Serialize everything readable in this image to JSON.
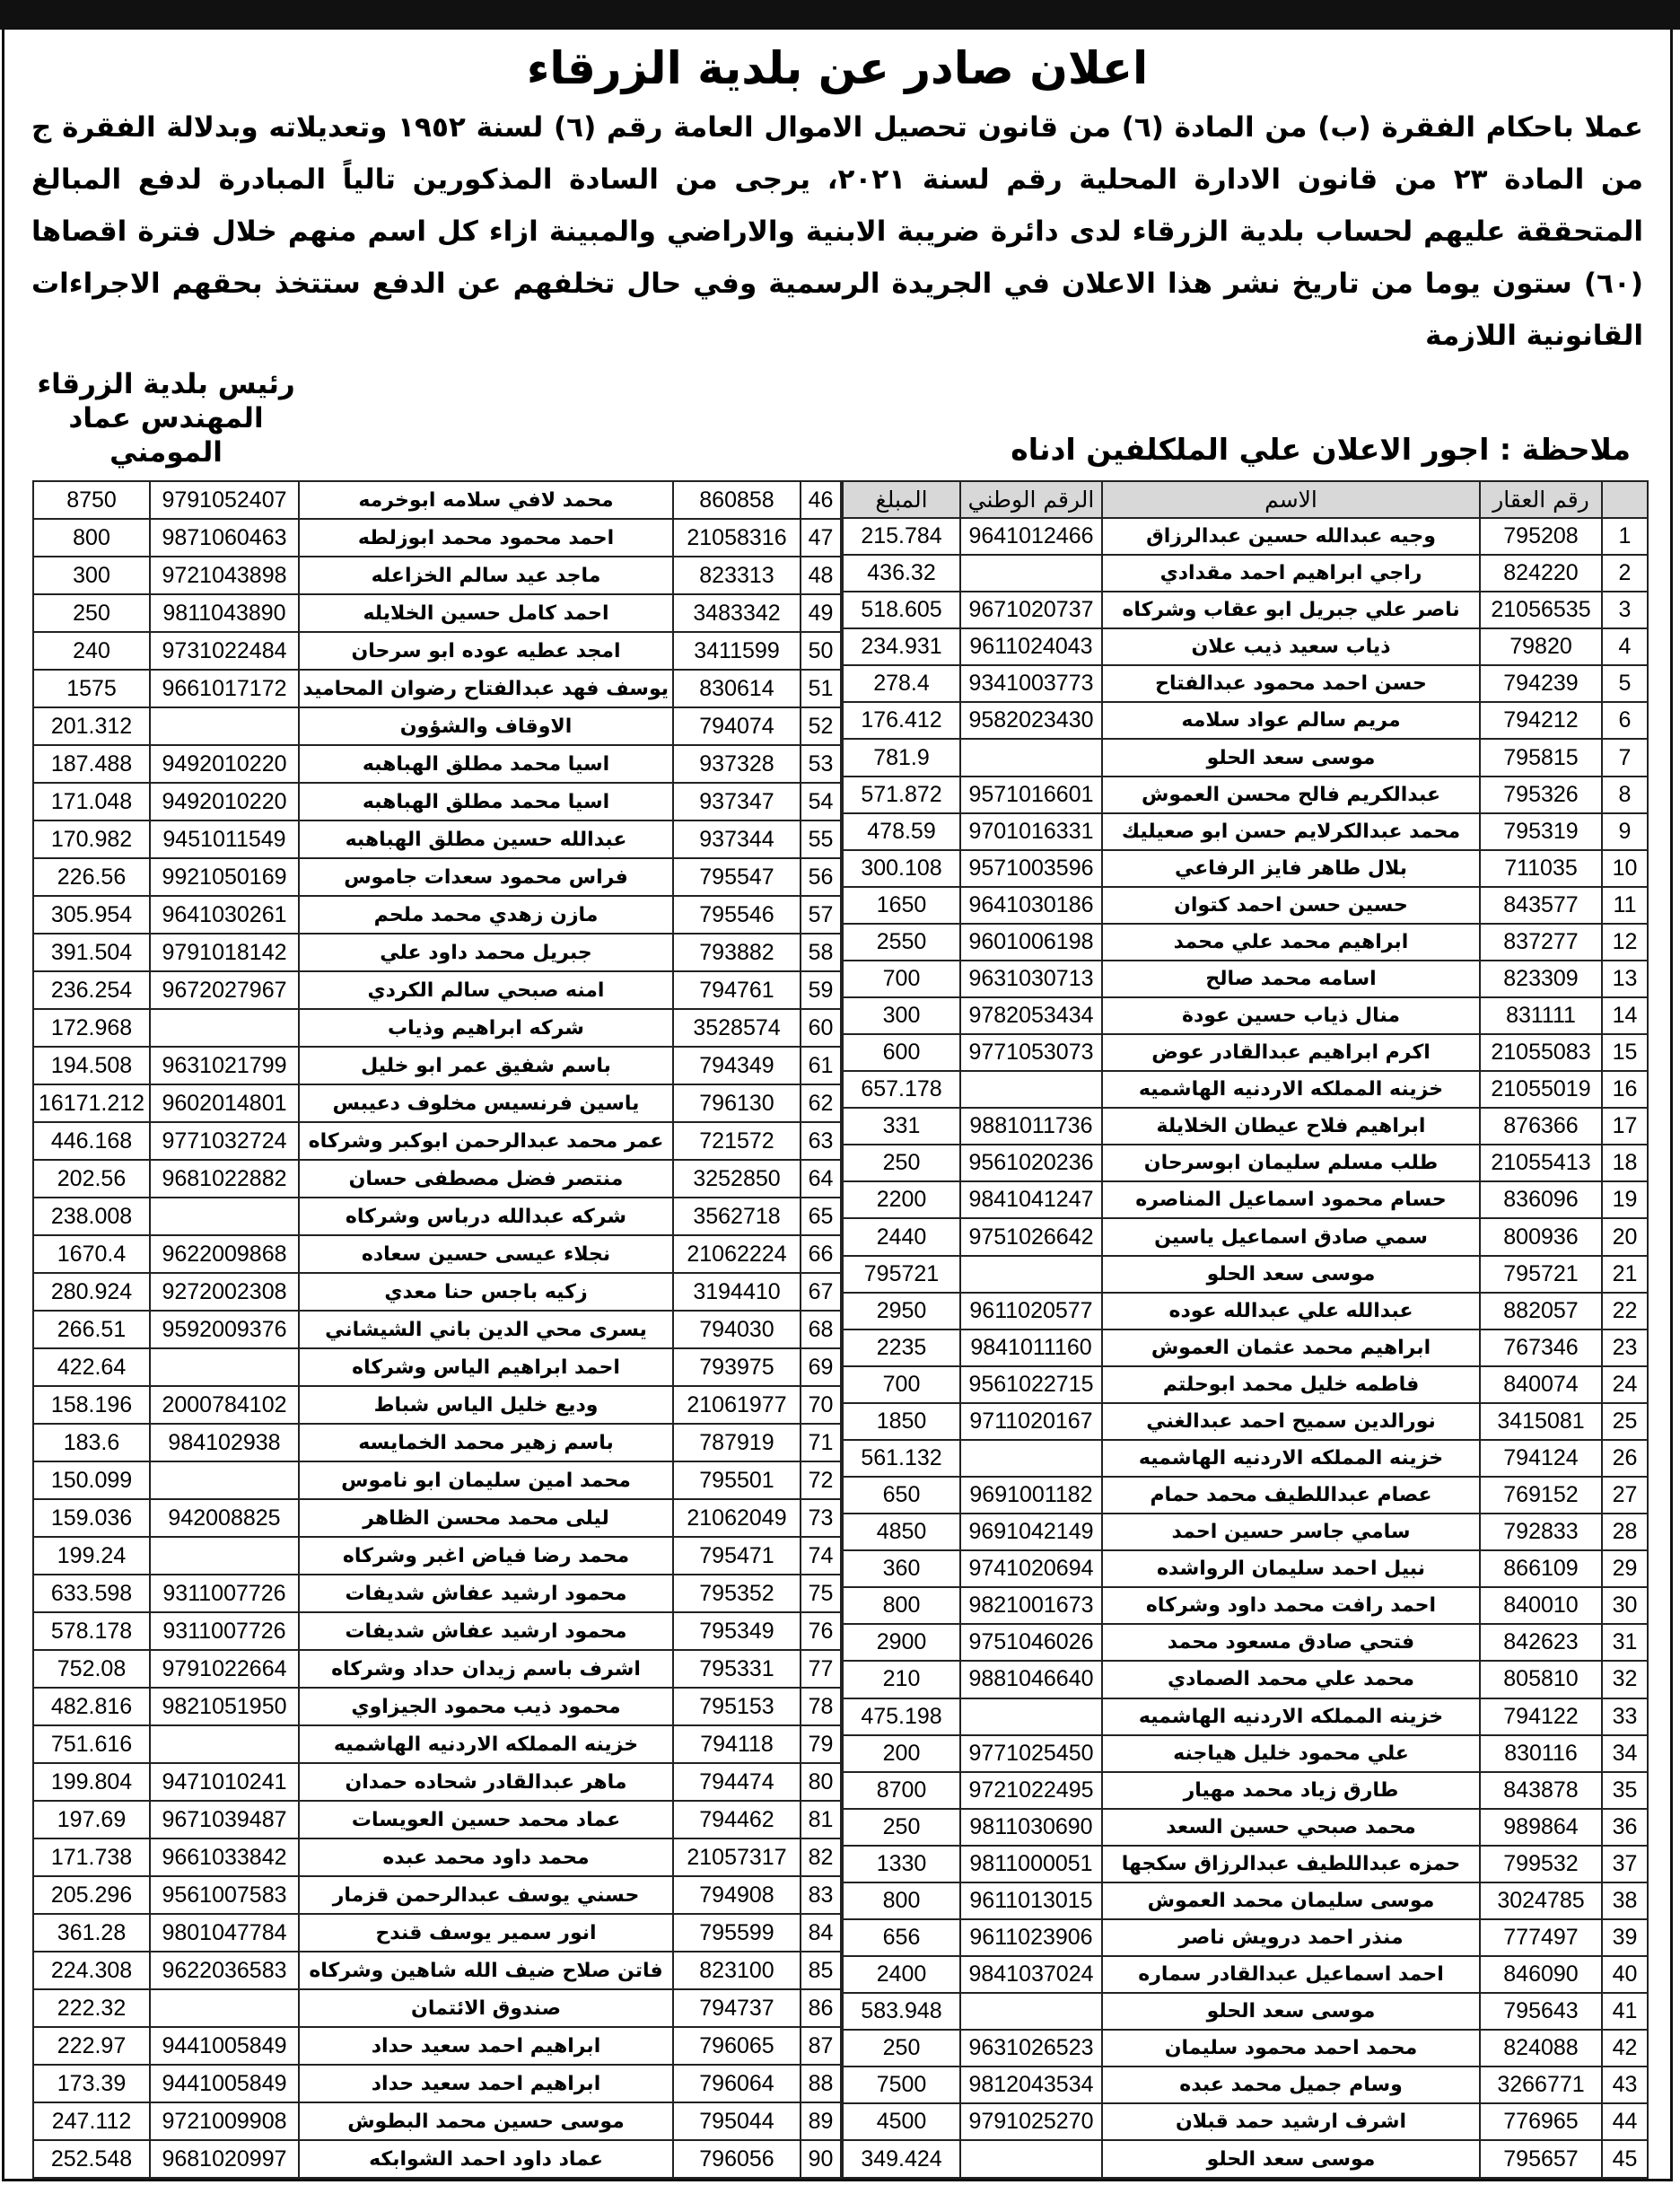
{
  "title": "اعلان صادر عن بلدية الزرقاء",
  "body": "عملا باحكام الفقرة (ب) من المادة (٦) من قانون تحصيل الاموال العامة رقم (٦) لسنة ١٩٥٢ وتعديلاته وبدلالة الفقرة ج من المادة ٢٣ من قانون الادارة المحلية رقم لسنة ٢٠٢١، يرجى من السادة المذكورين تالياً المبادرة لدفع المبالغ المتحققة عليهم لحساب بلدية الزرقاء لدى دائرة ضريبة الابنية والاراضي والمبينة ازاء كل اسم منهم خلال فترة اقصاها (٦٠) ستون يوما من تاريخ نشر هذا الاعلان في الجريدة الرسمية وفي حال تخلفهم عن الدفع ستتخذ بحقهم الاجراءات القانونية اللازمة",
  "signature": {
    "line1": "رئيس بلدية الزرقاء",
    "line2": "المهندس عماد المومني"
  },
  "note": "ملاحظة : اجور الاعلان علي الملكلفين ادناه",
  "headers": {
    "index": "",
    "parcel": "رقم العقار",
    "name": "الاسم",
    "nid": "الرقم الوطني",
    "amount": "المبلغ"
  },
  "rows_right": [
    [
      "1",
      "795208",
      "وجيه عبدالله حسين عبدالرزاق",
      "9641012466",
      "215.784"
    ],
    [
      "2",
      "824220",
      "راجي ابراهيم احمد مقدادي",
      "",
      "436.32"
    ],
    [
      "3",
      "21056535",
      "ناصر علي جبريل ابو عقاب وشركاه",
      "9671020737",
      "518.605"
    ],
    [
      "4",
      "79820",
      "ذياب سعيد ذيب علان",
      "9611024043",
      "234.931"
    ],
    [
      "5",
      "794239",
      "حسن احمد محمود عبدالفتاح",
      "9341003773",
      "278.4"
    ],
    [
      "6",
      "794212",
      "مريم سالم عواد سلامه",
      "9582023430",
      "176.412"
    ],
    [
      "7",
      "795815",
      "موسى سعد الحلو",
      "",
      "781.9"
    ],
    [
      "8",
      "795326",
      "عبدالكريم فالح محسن العموش",
      "9571016601",
      "571.872"
    ],
    [
      "9",
      "795319",
      "محمد عبدالكرلايم حسن ابو صعيليك",
      "9701016331",
      "478.59"
    ],
    [
      "10",
      "711035",
      "بلال  طاهر فايز الرفاعي",
      "9571003596",
      "300.108"
    ],
    [
      "11",
      "843577",
      "حسين حسن احمد كتوان",
      "9641030186",
      "1650"
    ],
    [
      "12",
      "837277",
      "ابراهيم محمد علي محمد",
      "9601006198",
      "2550"
    ],
    [
      "13",
      "823309",
      "اسامه محمد صالح",
      "9631030713",
      "700"
    ],
    [
      "14",
      "831111",
      "منال ذياب حسين عودة",
      "9782053434",
      "300"
    ],
    [
      "15",
      "21055083",
      "اكرم ابراهيم عبدالقادر عوض",
      "9771053073",
      "600"
    ],
    [
      "16",
      "21055019",
      "خزينه المملكه الاردنيه الهاشميه",
      "",
      "657.178"
    ],
    [
      "17",
      "876366",
      "ابراهيم فلاح عيطان الخلايلة",
      "9881011736",
      "331"
    ],
    [
      "18",
      "21055413",
      "طلب مسلم سليمان ابوسرحان",
      "9561020236",
      "250"
    ],
    [
      "19",
      "836096",
      "حسام محمود اسماعيل المناصره",
      "9841041247",
      "2200"
    ],
    [
      "20",
      "800936",
      "سمي صادق اسماعيل ياسين",
      "9751026642",
      "2440"
    ],
    [
      "21",
      "795721",
      "موسى سعد الحلو",
      "",
      "795721"
    ],
    [
      "22",
      "882057",
      "عبدالله علي عبدالله عوده",
      "9611020577",
      "2950"
    ],
    [
      "23",
      "767346",
      "ابراهيم محمد عثمان العموش",
      "9841011160",
      "2235"
    ],
    [
      "24",
      "840074",
      "فاطمه خليل محمد ابوحلتم",
      "9561022715",
      "700"
    ],
    [
      "25",
      "3415081",
      "نورالدين سميح احمد عبدالغني",
      "9711020167",
      "1850"
    ],
    [
      "26",
      "794124",
      "خزينه المملكه الاردنيه الهاشميه",
      "",
      "561.132"
    ],
    [
      "27",
      "769152",
      "عصام عبداللطيف محمد حمام",
      "9691001182",
      "650"
    ],
    [
      "28",
      "792833",
      "سامي جاسر حسين احمد",
      "9691042149",
      "4850"
    ],
    [
      "29",
      "866109",
      "نبيل احمد سليمان الرواشده",
      "9741020694",
      "360"
    ],
    [
      "30",
      "840010",
      "احمد رافت محمد داود وشركاه",
      "9821001673",
      "800"
    ],
    [
      "31",
      "842623",
      "فتحي صادق مسعود محمد",
      "9751046026",
      "2900"
    ],
    [
      "32",
      "805810",
      "محمد علي محمد الصمادي",
      "9881046640",
      "210"
    ],
    [
      "33",
      "794122",
      "خزينه المملكه الاردنيه الهاشميه",
      "",
      "475.198"
    ],
    [
      "34",
      "830116",
      "علي محمود خليل هياجنه",
      "9771025450",
      "200"
    ],
    [
      "35",
      "843878",
      "طارق زياد محمد مهيار",
      "9721022495",
      "8700"
    ],
    [
      "36",
      "989864",
      "محمد صبحي حسين السعد",
      "9811030690",
      "250"
    ],
    [
      "37",
      "799532",
      "حمزه عبداللطيف عبدالرزاق سكجها",
      "9811000051",
      "1330"
    ],
    [
      "38",
      "3024785",
      "موسى سليمان محمد العموش",
      "9611013015",
      "800"
    ],
    [
      "39",
      "777497",
      "منذر احمد درويش ناصر",
      "9611023906",
      "656"
    ],
    [
      "40",
      "846090",
      "احمد اسماعيل عبدالقادر سماره",
      "9841037024",
      "2400"
    ],
    [
      "41",
      "795643",
      "موسى سعد الحلو",
      "",
      "583.948"
    ],
    [
      "42",
      "824088",
      "محمد احمد محمود سليمان",
      "9631026523",
      "250"
    ],
    [
      "43",
      "3266771",
      "وسام جميل محمد عبده",
      "9812043534",
      "7500"
    ],
    [
      "44",
      "776965",
      "اشرف ارشيد حمد قبلان",
      "9791025270",
      "4500"
    ],
    [
      "45",
      "795657",
      "موسى سعد الحلو",
      "",
      "349.424"
    ]
  ],
  "rows_left": [
    [
      "46",
      "860858",
      "محمد لافي سلامه ابوخرمه",
      "9791052407",
      "8750"
    ],
    [
      "47",
      "21058316",
      "احمد محمود محمد ابوزلطه",
      "9871060463",
      "800"
    ],
    [
      "48",
      "823313",
      "ماجد عيد سالم الخزاعله",
      "9721043898",
      "300"
    ],
    [
      "49",
      "3483342",
      "احمد كامل حسين الخلايله",
      "9811043890",
      "250"
    ],
    [
      "50",
      "3411599",
      "امجد عطيه عوده ابو سرحان",
      "9731022484",
      "240"
    ],
    [
      "51",
      "830614",
      "يوسف فهد عبدالفتاح رضوان المحاميد",
      "9661017172",
      "1575"
    ],
    [
      "52",
      "794074",
      "الاوقاف والشؤون",
      "",
      "201.312"
    ],
    [
      "53",
      "937328",
      "اسيا محمد مطلق الهباهبه",
      "9492010220",
      "187.488"
    ],
    [
      "54",
      "937347",
      "اسيا محمد مطلق الهباهبه",
      "9492010220",
      "171.048"
    ],
    [
      "55",
      "937344",
      "عبدالله حسين مطلق الهباهبه",
      "9451011549",
      "170.982"
    ],
    [
      "56",
      "795547",
      "فراس محمود سعدات جاموس",
      "9921050169",
      "226.56"
    ],
    [
      "57",
      "795546",
      "مازن زهدي محمد ملحم",
      "9641030261",
      "305.954"
    ],
    [
      "58",
      "793882",
      "جبريل محمد داود علي",
      "9791018142",
      "391.504"
    ],
    [
      "59",
      "794761",
      "امنه صبحي سالم الكردي",
      "9672027967",
      "236.254"
    ],
    [
      "60",
      "3528574",
      "شركه ابراهيم وذياب",
      "",
      "172.968"
    ],
    [
      "61",
      "794349",
      "باسم شفيق عمر ابو خليل",
      "9631021799",
      "194.508"
    ],
    [
      "62",
      "796130",
      "ياسين فرنسيس مخلوف دعيبس",
      "9602014801",
      "16171.212"
    ],
    [
      "63",
      "721572",
      "عمر محمد عبدالرحمن ابوكبر وشركاه",
      "9771032724",
      "446.168"
    ],
    [
      "64",
      "3252850",
      "منتصر فضل  مصطفى حسان",
      "9681022882",
      "202.56"
    ],
    [
      "65",
      "3562718",
      "شركه عبدالله درباس وشركاه",
      "",
      "238.008"
    ],
    [
      "66",
      "21062224",
      "نجلاء عيسى حسين سعاده",
      "9622009868",
      "1670.4"
    ],
    [
      "67",
      "3194410",
      "زكيه باجس حنا معدي",
      "9272002308",
      "280.924"
    ],
    [
      "68",
      "794030",
      "يسرى محي الدين باني الشيشاني",
      "9592009376",
      "266.51"
    ],
    [
      "69",
      "793975",
      "احمد ابراهيم الياس وشركاه",
      "",
      "422.64"
    ],
    [
      "70",
      "21061977",
      "وديع خليل الياس شباط",
      "2000784102",
      "158.196"
    ],
    [
      "71",
      "787919",
      "باسم زهير محمد الخمايسه",
      "984102938",
      "183.6"
    ],
    [
      "72",
      "795501",
      "محمد امين سليمان ابو ناموس",
      "",
      "150.099"
    ],
    [
      "73",
      "21062049",
      "ليلى محمد محسن الظاهر",
      "942008825",
      "159.036"
    ],
    [
      "74",
      "795471",
      "محمد رضا فياض اغبر وشركاه",
      "",
      "199.24"
    ],
    [
      "75",
      "795352",
      "محمود ارشيد عفاش شديفات",
      "9311007726",
      "633.598"
    ],
    [
      "76",
      "795349",
      "محمود ارشيد عفاش شديفات",
      "9311007726",
      "578.178"
    ],
    [
      "77",
      "795331",
      "اشرف باسم زيدان حداد وشركاه",
      "9791022664",
      "752.08"
    ],
    [
      "78",
      "795153",
      "محمود ذيب محمود الجيزاوي",
      "9821051950",
      "482.816"
    ],
    [
      "79",
      "794118",
      "خزينه المملكه الاردنيه الهاشميه",
      "",
      "751.616"
    ],
    [
      "80",
      "794474",
      "ماهر عبدالقادر شحاده حمدان",
      "9471010241",
      "199.804"
    ],
    [
      "81",
      "794462",
      "عماد محمد حسين العويسات",
      "9671039487",
      "197.69"
    ],
    [
      "82",
      "21057317",
      "محمد داود محمد عبده",
      "9661033842",
      "171.738"
    ],
    [
      "83",
      "794908",
      "حسني يوسف عبدالرحمن قزمار",
      "9561007583",
      "205.296"
    ],
    [
      "84",
      "795599",
      "انور سمير يوسف قندح",
      "9801047784",
      "361.28"
    ],
    [
      "85",
      "823100",
      "فاتن صلاح ضيف الله شاهين وشركاه",
      "9622036583",
      "224.308"
    ],
    [
      "86",
      "794737",
      "صندوق الائتمان",
      "",
      "222.32"
    ],
    [
      "87",
      "796065",
      "ابراهيم احمد سعيد حداد",
      "9441005849",
      "222.97"
    ],
    [
      "88",
      "796064",
      "ابراهيم احمد سعيد حداد",
      "9441005849",
      "173.39"
    ],
    [
      "89",
      "795044",
      "موسى حسين محمد البطوش",
      "9721009908",
      "247.112"
    ],
    [
      "90",
      "796056",
      "عماد داود احمد الشوابكه",
      "9681020997",
      "252.548"
    ]
  ]
}
